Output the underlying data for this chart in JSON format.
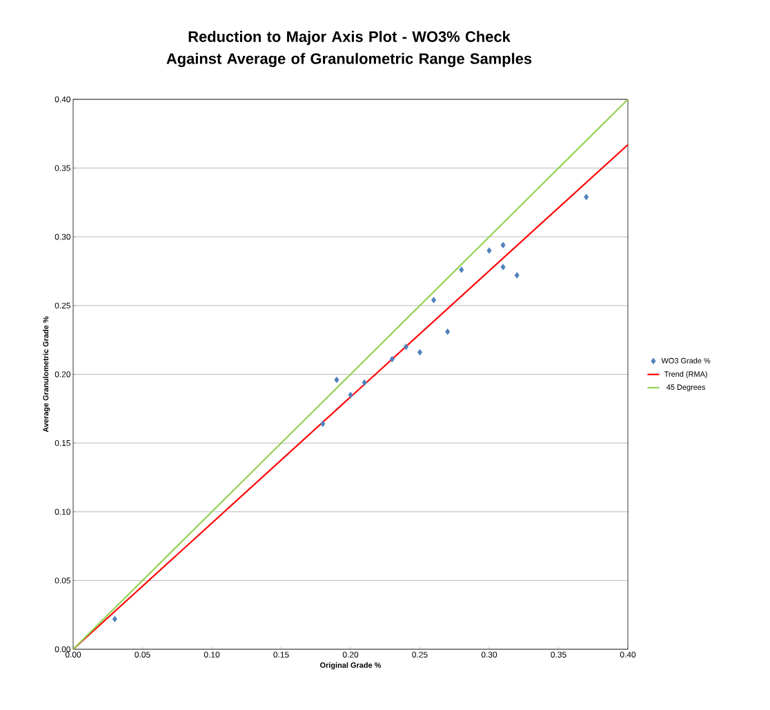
{
  "chart_data": {
    "type": "scatter",
    "title": "Reduction to Major Axis Plot - WO3% Check Against Average of Granulometric Range Samples",
    "xlabel": "Original Grade %",
    "ylabel": "Average Granulometric Grade %",
    "xlim": [
      0,
      0.4
    ],
    "ylim": [
      0,
      0.4
    ],
    "xticks": [
      {
        "value": 0,
        "label": "0.00"
      },
      {
        "value": 0.05,
        "label": "0.05"
      },
      {
        "value": 0.1,
        "label": "0.10"
      },
      {
        "value": 0.15,
        "label": "0.15"
      },
      {
        "value": 0.2,
        "label": "0.20"
      },
      {
        "value": 0.25,
        "label": "0.25"
      },
      {
        "value": 0.3,
        "label": "0.30"
      },
      {
        "value": 0.35,
        "label": "0.35"
      },
      {
        "value": 0.4,
        "label": "0.40"
      }
    ],
    "yticks": [
      {
        "value": 0,
        "label": "0.00"
      },
      {
        "value": 0.05,
        "label": "0.05"
      },
      {
        "value": 0.1,
        "label": "0.10"
      },
      {
        "value": 0.15,
        "label": "0.15"
      },
      {
        "value": 0.2,
        "label": "0.20"
      },
      {
        "value": 0.25,
        "label": "0.25"
      },
      {
        "value": 0.3,
        "label": "0.30"
      },
      {
        "value": 0.35,
        "label": "0.35"
      },
      {
        "value": 0.4,
        "label": "0.40"
      }
    ],
    "grid": "y",
    "legend": "right",
    "series": [
      {
        "name": "WO3 Grade %",
        "marker": "diamond",
        "color": "#4f81bd",
        "x": [
          0.03,
          0.18,
          0.19,
          0.2,
          0.21,
          0.23,
          0.24,
          0.25,
          0.26,
          0.27,
          0.28,
          0.3,
          0.31,
          0.31,
          0.32,
          0.37
        ],
        "values": [
          0.022,
          0.164,
          0.196,
          0.185,
          0.194,
          0.211,
          0.22,
          0.216,
          0.254,
          0.231,
          0.276,
          0.29,
          0.294,
          0.278,
          0.272,
          0.329
        ]
      },
      {
        "name": "Trend (RMA)",
        "type": "line",
        "marker": "none",
        "color": "#ff0000",
        "x": [
          0,
          0.4
        ],
        "values": [
          0,
          0.367
        ]
      },
      {
        "name": "45 Degrees",
        "type": "line",
        "marker": "none",
        "color": "#92d050",
        "x": [
          0,
          0.4
        ],
        "values": [
          0,
          0.4
        ]
      }
    ]
  }
}
